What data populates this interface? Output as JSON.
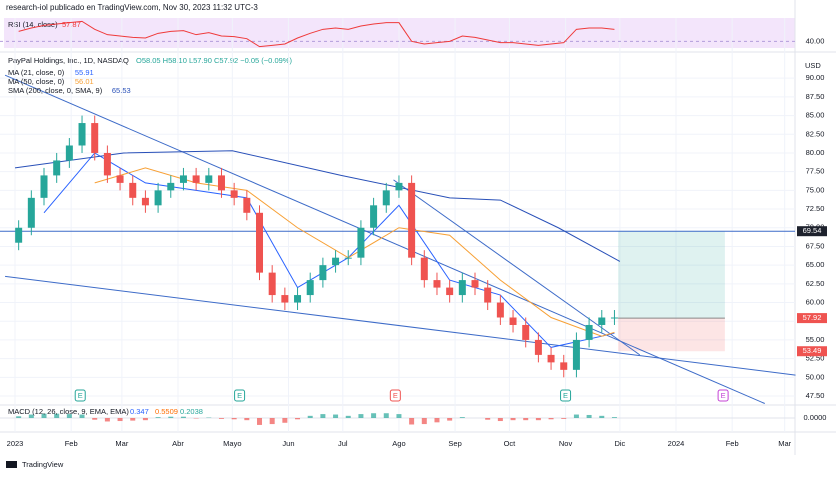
{
  "chart_data": {
    "type": "candlestick",
    "header": "research-iol publicado en TradingView.com, Nov 30, 2023 11:32 UTC-3",
    "symbol": "PayPal Holdings, Inc., 1D, NASDAQ",
    "ohlc_text": "O58.05 H58.10 L57.90 C57.92 −0.05 (−0.09%)",
    "currency": "USD",
    "footer": "TradingView",
    "x": [
      2,
      9,
      16,
      23,
      30,
      37,
      44,
      51,
      58,
      65,
      72,
      79,
      86,
      93,
      100,
      107,
      114,
      121,
      128,
      135,
      142,
      149,
      156,
      163,
      170,
      177,
      184,
      191,
      198,
      205,
      212,
      219,
      226,
      233,
      240,
      247,
      254,
      261,
      268,
      275,
      282,
      289,
      296,
      303,
      310,
      317,
      324,
      331
    ],
    "open": [
      68,
      70,
      74,
      77,
      79,
      81,
      84,
      80,
      77,
      76,
      74,
      73,
      75,
      76,
      77,
      76,
      77,
      75,
      74,
      72,
      64,
      61,
      60,
      61,
      63,
      65,
      66,
      66,
      70,
      73,
      75,
      76,
      66,
      63,
      62,
      61,
      63,
      62,
      60,
      58,
      57,
      55,
      53,
      52,
      51,
      55,
      57,
      58
    ],
    "high": [
      71,
      75,
      78,
      80,
      82,
      85,
      85,
      81,
      78,
      77,
      75,
      76,
      77,
      78,
      78,
      78,
      78,
      76,
      75,
      73,
      65,
      62,
      62,
      64,
      66,
      67,
      67,
      71,
      74,
      76,
      77,
      77,
      67,
      64,
      63,
      64,
      64,
      63,
      61,
      59,
      58,
      56,
      54,
      53,
      56,
      58,
      59,
      59
    ],
    "low": [
      67,
      69,
      73,
      76,
      78,
      80,
      79,
      76,
      75,
      73,
      72,
      72,
      74,
      75,
      75,
      75,
      74,
      73,
      71,
      63,
      60,
      59,
      59,
      60,
      62,
      64,
      65,
      65,
      69,
      72,
      74,
      65,
      62,
      61,
      60,
      60,
      61,
      59,
      57,
      56,
      54,
      52,
      51,
      50,
      50,
      54,
      56,
      57
    ],
    "close": [
      70,
      74,
      77,
      79,
      81,
      84,
      80,
      77,
      76,
      74,
      73,
      75,
      76,
      77,
      76,
      77,
      75,
      74,
      72,
      64,
      61,
      60,
      61,
      63,
      65,
      66,
      66,
      70,
      73,
      75,
      76,
      66,
      63,
      62,
      61,
      63,
      62,
      60,
      58,
      57,
      55,
      53,
      52,
      51,
      55,
      57,
      58,
      58
    ],
    "up_color": "#26a69a",
    "down_color": "#ef5350",
    "xlim": [
      -8.3,
      430.7
    ],
    "ylim": [
      46.3,
      93.1
    ],
    "xticks": [
      {
        "value": 0,
        "label": "2023"
      },
      {
        "value": 31,
        "label": "Feb"
      },
      {
        "value": 59,
        "label": "Mar"
      },
      {
        "value": 90,
        "label": "Abr"
      },
      {
        "value": 120,
        "label": "Mayo"
      },
      {
        "value": 151,
        "label": "Jun"
      },
      {
        "value": 181,
        "label": "Jul"
      },
      {
        "value": 212,
        "label": "Ago"
      },
      {
        "value": 243,
        "label": "Sep"
      },
      {
        "value": 273,
        "label": "Oct"
      },
      {
        "value": 304,
        "label": "Nov"
      },
      {
        "value": 334,
        "label": "Dic"
      },
      {
        "value": 365,
        "label": "2024"
      },
      {
        "value": 396,
        "label": "Feb"
      },
      {
        "value": 425,
        "label": "Mar"
      }
    ],
    "yticks": [
      {
        "value": 47.5,
        "label": "47.50"
      },
      {
        "value": 50,
        "label": "50.00"
      },
      {
        "value": 52.5,
        "label": "52.50"
      },
      {
        "value": 55,
        "label": "55.00"
      },
      {
        "value": 57.5,
        "label": "57.50"
      },
      {
        "value": 60,
        "label": "60.00"
      },
      {
        "value": 62.5,
        "label": "62.50"
      },
      {
        "value": 65,
        "label": "65.00"
      },
      {
        "value": 67.5,
        "label": "67.50"
      },
      {
        "value": 70,
        "label": "70.00"
      },
      {
        "value": 72.5,
        "label": "72.50"
      },
      {
        "value": 75,
        "label": "75.00"
      },
      {
        "value": 77.5,
        "label": "77.50"
      },
      {
        "value": 80,
        "label": "80.00"
      },
      {
        "value": 82.5,
        "label": "82.50"
      },
      {
        "value": 85,
        "label": "85.00"
      },
      {
        "value": 87.5,
        "label": "87.50"
      },
      {
        "value": 90,
        "label": "90.00"
      }
    ],
    "series": [
      {
        "name": "MA (21, close, 0)",
        "last": 55.91,
        "color": "#2962ff",
        "x": [
          16,
          44,
          72,
          100,
          128,
          156,
          184,
          212,
          240,
          268,
          296,
          324,
          331
        ],
        "values": [
          72,
          80,
          76,
          75,
          74,
          62,
          66,
          73,
          63,
          61,
          54,
          55.5,
          55.91
        ]
      },
      {
        "name": "MA (50, close, 0)",
        "last": 56.01,
        "color": "#f7a035",
        "x": [
          44,
          72,
          100,
          128,
          156,
          184,
          212,
          240,
          268,
          296,
          324,
          331
        ],
        "values": [
          76,
          78,
          76,
          75,
          70,
          66,
          70,
          69,
          63,
          58,
          55.5,
          56.01
        ]
      },
      {
        "name": "SMA (200, close, 0, SMA, 9)",
        "last": 65.53,
        "color": "#2950b8",
        "x": [
          0,
          60,
          120,
          180,
          240,
          268,
          300,
          334
        ],
        "values": [
          78,
          80,
          80.3,
          77,
          74,
          73.7,
          70,
          65.5
        ]
      }
    ],
    "trendlines": [
      {
        "x": [
          -5.5,
          414
        ],
        "y": [
          90.4,
          46.5
        ],
        "color": "#3d6bc8"
      },
      {
        "x": [
          -5.5,
          431
        ],
        "y": [
          63.5,
          50.3
        ],
        "color": "#3d6bc8"
      },
      {
        "x": [
          209,
          345
        ],
        "y": [
          76.4,
          53
        ],
        "color": "#3d6bc8"
      }
    ],
    "horizontal_line": {
      "value": 69.54,
      "label": "69.54",
      "color": "#3d6bc8"
    },
    "position": {
      "x": [
        333,
        392
      ],
      "entry": 57.92,
      "entry_label": "57.92",
      "target": 69.54,
      "stop": 53.49,
      "stop_label": "53.49"
    },
    "earnings": {
      "label": "E",
      "x": [
        36,
        124,
        210,
        304,
        391
      ],
      "colors": [
        "#26a69a",
        "#26a69a",
        "#ef5350",
        "#26a69a",
        "#c443d6"
      ]
    },
    "rsi": {
      "name": "RSI (14, close)",
      "last": 57.87,
      "ylim": [
        30,
        75
      ],
      "yticks": [
        {
          "value": 40,
          "label": "40.00"
        }
      ],
      "color": "#ef3a3a",
      "values": [
        55,
        60,
        64,
        66,
        68,
        70,
        58,
        50,
        48,
        46,
        45,
        52,
        55,
        56,
        50,
        53,
        48,
        47,
        44,
        32,
        34,
        36,
        45,
        52,
        58,
        60,
        58,
        63,
        66,
        68,
        68,
        40,
        36,
        38,
        40,
        48,
        46,
        42,
        38,
        38,
        36,
        34,
        36,
        38,
        58,
        60,
        60,
        57.87
      ]
    },
    "macd": {
      "name": "MACD (12, 26, close, 9, EMA, EMA)",
      "values_text": [
        0.347,
        0.5509,
        0.2038
      ],
      "ylim": [
        -3,
        3
      ],
      "yticks": [
        {
          "value": 0,
          "label": "0.0000"
        }
      ],
      "histogram": [
        0.4,
        0.8,
        1,
        1,
        0.9,
        0.8,
        -0.4,
        -0.8,
        -0.7,
        -0.6,
        -0.5,
        0.2,
        0.3,
        0.3,
        -0.1,
        0.1,
        -0.2,
        -0.3,
        -0.5,
        -1.6,
        -1.4,
        -1.1,
        -0.3,
        0.5,
        0.9,
        0.8,
        0.5,
        0.9,
        1.1,
        1.1,
        0.9,
        -1.5,
        -1.4,
        -1,
        -0.6,
        0.2,
        0,
        -0.4,
        -0.7,
        -0.5,
        -0.5,
        -0.5,
        -0.3,
        -0.2,
        0.8,
        0.7,
        0.5,
        0.2
      ]
    }
  }
}
